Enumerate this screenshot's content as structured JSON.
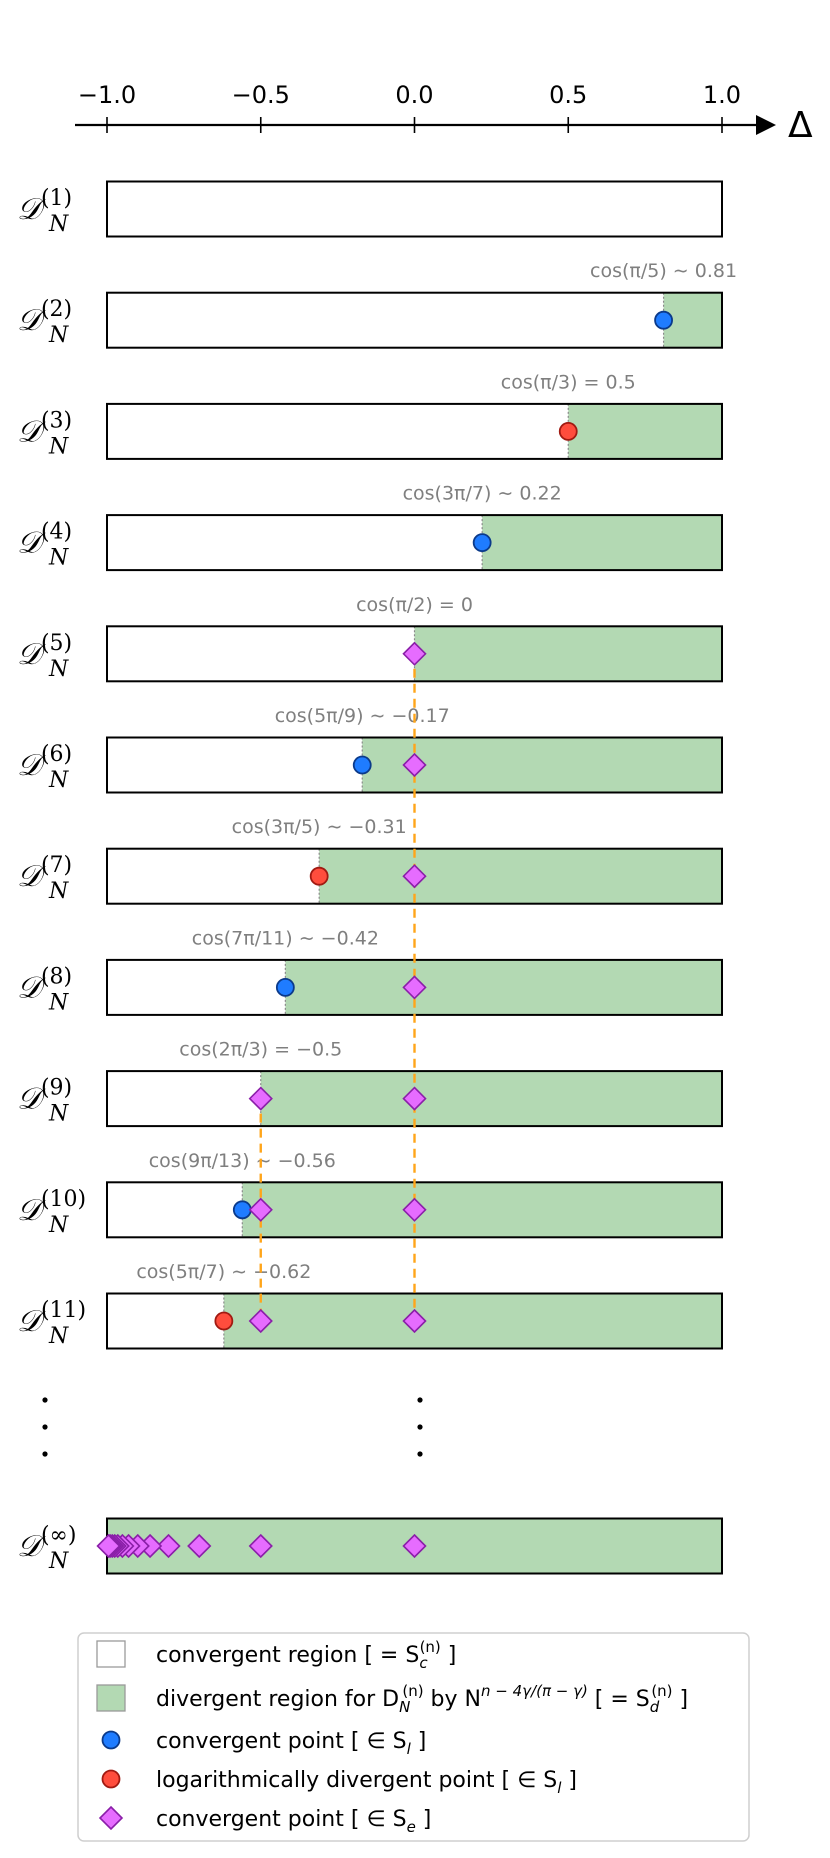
{
  "axis": {
    "ticks": [
      -1.0,
      -0.5,
      0.0,
      0.5,
      1.0
    ],
    "tick_labels": [
      "−1.0",
      "−0.5",
      "0.0",
      "0.5",
      "1.0"
    ],
    "label": "Δ",
    "range": [
      -1.0,
      1.0
    ]
  },
  "colors": {
    "divergent_fill": "#b3d9b3",
    "blue_point": "#1f7cff",
    "red_point": "#ff4d3d",
    "diamond_point": "#e66cff",
    "dashed_line": "#ffa51a",
    "annotation_text": "#7f7f7f"
  },
  "chart_data": {
    "type": "bar",
    "rows": [
      {
        "label_main": "D",
        "label_sub": "N",
        "label_sup": "(1)",
        "threshold": null,
        "annotation": "",
        "points": []
      },
      {
        "label_main": "D",
        "label_sub": "N",
        "label_sup": "(2)",
        "threshold": 0.81,
        "annotation": "cos(π/5) ∼ 0.81",
        "points": [
          {
            "x": 0.81,
            "kind": "blue"
          }
        ]
      },
      {
        "label_main": "D",
        "label_sub": "N",
        "label_sup": "(3)",
        "threshold": 0.5,
        "annotation": "cos(π/3) = 0.5",
        "points": [
          {
            "x": 0.5,
            "kind": "red"
          }
        ]
      },
      {
        "label_main": "D",
        "label_sub": "N",
        "label_sup": "(4)",
        "threshold": 0.22,
        "annotation": "cos(3π/7) ∼ 0.22",
        "points": [
          {
            "x": 0.22,
            "kind": "blue"
          }
        ]
      },
      {
        "label_main": "D",
        "label_sub": "N",
        "label_sup": "(5)",
        "threshold": 0.0,
        "annotation": "cos(π/2) = 0",
        "points": [
          {
            "x": 0.0,
            "kind": "diamond"
          }
        ]
      },
      {
        "label_main": "D",
        "label_sub": "N",
        "label_sup": "(6)",
        "threshold": -0.17,
        "annotation": "cos(5π/9) ∼ −0.17",
        "points": [
          {
            "x": -0.17,
            "kind": "blue"
          },
          {
            "x": 0.0,
            "kind": "diamond"
          }
        ]
      },
      {
        "label_main": "D",
        "label_sub": "N",
        "label_sup": "(7)",
        "threshold": -0.31,
        "annotation": "cos(3π/5) ∼ −0.31",
        "points": [
          {
            "x": -0.31,
            "kind": "red"
          },
          {
            "x": 0.0,
            "kind": "diamond"
          }
        ]
      },
      {
        "label_main": "D",
        "label_sub": "N",
        "label_sup": "(8)",
        "threshold": -0.42,
        "annotation": "cos(7π/11) ∼ −0.42",
        "points": [
          {
            "x": -0.42,
            "kind": "blue"
          },
          {
            "x": 0.0,
            "kind": "diamond"
          }
        ]
      },
      {
        "label_main": "D",
        "label_sub": "N",
        "label_sup": "(9)",
        "threshold": -0.5,
        "annotation": "cos(2π/3) = −0.5",
        "points": [
          {
            "x": -0.5,
            "kind": "diamond"
          },
          {
            "x": 0.0,
            "kind": "diamond"
          }
        ]
      },
      {
        "label_main": "D",
        "label_sub": "N",
        "label_sup": "(10)",
        "threshold": -0.56,
        "annotation": "cos(9π/13) ∼ −0.56",
        "points": [
          {
            "x": -0.56,
            "kind": "blue"
          },
          {
            "x": -0.5,
            "kind": "diamond"
          },
          {
            "x": 0.0,
            "kind": "diamond"
          }
        ]
      },
      {
        "label_main": "D",
        "label_sub": "N",
        "label_sup": "(11)",
        "threshold": -0.62,
        "annotation": "cos(5π/7) ∼ −0.62",
        "points": [
          {
            "x": -0.62,
            "kind": "red"
          },
          {
            "x": -0.5,
            "kind": "diamond"
          },
          {
            "x": 0.0,
            "kind": "diamond"
          }
        ]
      }
    ],
    "infinity_row": {
      "label_main": "D",
      "label_sub": "N",
      "label_sup": "(∞)",
      "threshold": -1.0,
      "points": [
        {
          "x": 0.0,
          "kind": "diamond"
        },
        {
          "x": -0.5,
          "kind": "diamond"
        },
        {
          "x": -0.7,
          "kind": "diamond"
        },
        {
          "x": -0.8,
          "kind": "diamond"
        },
        {
          "x": -0.86,
          "kind": "diamond"
        },
        {
          "x": -0.9,
          "kind": "diamond"
        },
        {
          "x": -0.93,
          "kind": "diamond"
        },
        {
          "x": -0.95,
          "kind": "diamond"
        },
        {
          "x": -0.965,
          "kind": "diamond"
        },
        {
          "x": -0.975,
          "kind": "diamond"
        },
        {
          "x": -0.983,
          "kind": "diamond"
        },
        {
          "x": -0.99,
          "kind": "diamond"
        },
        {
          "x": -0.995,
          "kind": "diamond"
        }
      ]
    },
    "dashed_lines": [
      {
        "x": 0.0,
        "from_row": 5,
        "to_row": 11
      },
      {
        "x": -0.5,
        "from_row": 9,
        "to_row": 11
      }
    ],
    "ellipsis": "⋮"
  },
  "legend": {
    "items": [
      {
        "kind": "white_box",
        "text": "convergent region [ = S",
        "sub": "c",
        "sup": "(n)",
        "tail": " ]"
      },
      {
        "kind": "green_box",
        "text": "divergent region for D",
        "sub": "N",
        "sup": "(n)",
        "tail": " by N",
        "exp": "n − 4γ/(π − γ)",
        "tail2": " [ = S",
        "sub2": "d",
        "sup2": "(n)",
        "tail3": " ]"
      },
      {
        "kind": "blue",
        "text": "convergent point [ ∈ S",
        "sub": "l",
        "tail": " ]"
      },
      {
        "kind": "red",
        "text": "logarithmically divergent point [ ∈ S",
        "sub": "l",
        "tail": " ]"
      },
      {
        "kind": "diamond",
        "text": "convergent point [ ∈ S",
        "sub": "e",
        "tail": " ]"
      }
    ]
  }
}
